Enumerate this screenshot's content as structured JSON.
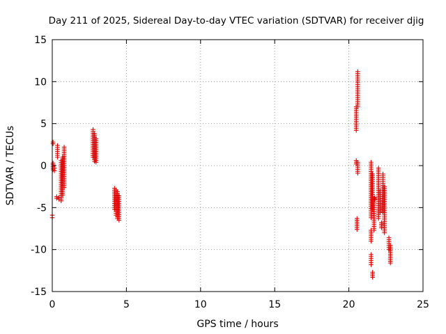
{
  "chart_data": {
    "type": "scatter",
    "title": "Day 211 of 2025, Sidereal Day-to-day VTEC variation (SDTVAR) for receiver djig",
    "xlabel": "GPS time / hours",
    "ylabel": "SDTVAR / TECUs",
    "xlim": [
      0,
      25
    ],
    "ylim": [
      -15,
      15
    ],
    "xticks": [
      0,
      5,
      10,
      15,
      20,
      25
    ],
    "yticks": [
      -15,
      -10,
      -5,
      0,
      5,
      10,
      15
    ],
    "grid": true,
    "marker": "+",
    "color": "#e00000",
    "clusters": [
      {
        "x": 0.0,
        "y_from": -6.2,
        "y_to": -5.9
      },
      {
        "x": 0.05,
        "y_from": -0.5,
        "y_to": 0.3
      },
      {
        "x": 0.05,
        "y_from": 2.6,
        "y_to": 2.8
      },
      {
        "x": 0.15,
        "y_from": -0.6,
        "y_to": -0.3
      },
      {
        "x": 0.3,
        "y_from": -3.9,
        "y_to": -3.7
      },
      {
        "x": 0.35,
        "y_from": 1.0,
        "y_to": 2.4
      },
      {
        "x": 0.45,
        "y_from": -4.0,
        "y_to": -3.8
      },
      {
        "x": 0.6,
        "y_from": -4.2,
        "y_to": 0.6
      },
      {
        "x": 0.7,
        "y_from": -3.5,
        "y_to": 1.0
      },
      {
        "x": 0.8,
        "y_from": -2.6,
        "y_to": 2.2
      },
      {
        "x": 2.75,
        "y_from": 1.0,
        "y_to": 4.3
      },
      {
        "x": 2.85,
        "y_from": 0.5,
        "y_to": 3.8
      },
      {
        "x": 2.95,
        "y_from": 0.4,
        "y_to": 3.2
      },
      {
        "x": 4.2,
        "y_from": -5.2,
        "y_to": -2.7
      },
      {
        "x": 4.3,
        "y_from": -5.9,
        "y_to": -2.9
      },
      {
        "x": 4.4,
        "y_from": -6.3,
        "y_to": -3.1
      },
      {
        "x": 4.5,
        "y_from": -6.5,
        "y_to": -3.6
      },
      {
        "x": 20.5,
        "y_from": 4.2,
        "y_to": 7.0
      },
      {
        "x": 20.6,
        "y_from": 7.0,
        "y_to": 11.2
      },
      {
        "x": 20.5,
        "y_from": 0.2,
        "y_to": 0.6
      },
      {
        "x": 20.6,
        "y_from": -0.9,
        "y_to": 0.4
      },
      {
        "x": 20.55,
        "y_from": -7.6,
        "y_to": -6.3
      },
      {
        "x": 21.5,
        "y_from": -9.0,
        "y_to": -7.7
      },
      {
        "x": 21.5,
        "y_from": -11.8,
        "y_to": -10.6
      },
      {
        "x": 21.6,
        "y_from": -13.3,
        "y_to": -12.7
      },
      {
        "x": 21.5,
        "y_from": -6.2,
        "y_to": 0.4
      },
      {
        "x": 21.6,
        "y_from": -5.2,
        "y_to": -1.0
      },
      {
        "x": 21.7,
        "y_from": -7.7,
        "y_to": -3.9
      },
      {
        "x": 21.75,
        "y_from": -4.0,
        "y_to": -3.8
      },
      {
        "x": 22.0,
        "y_from": -6.3,
        "y_to": -0.3
      },
      {
        "x": 22.1,
        "y_from": -5.6,
        "y_to": -3.0
      },
      {
        "x": 22.2,
        "y_from": -7.4,
        "y_to": -6.8
      },
      {
        "x": 22.3,
        "y_from": -5.5,
        "y_to": -1.0
      },
      {
        "x": 22.4,
        "y_from": -8.0,
        "y_to": -2.5
      },
      {
        "x": 22.7,
        "y_from": -10.0,
        "y_to": -8.6
      },
      {
        "x": 22.8,
        "y_from": -11.6,
        "y_to": -9.5
      }
    ]
  }
}
